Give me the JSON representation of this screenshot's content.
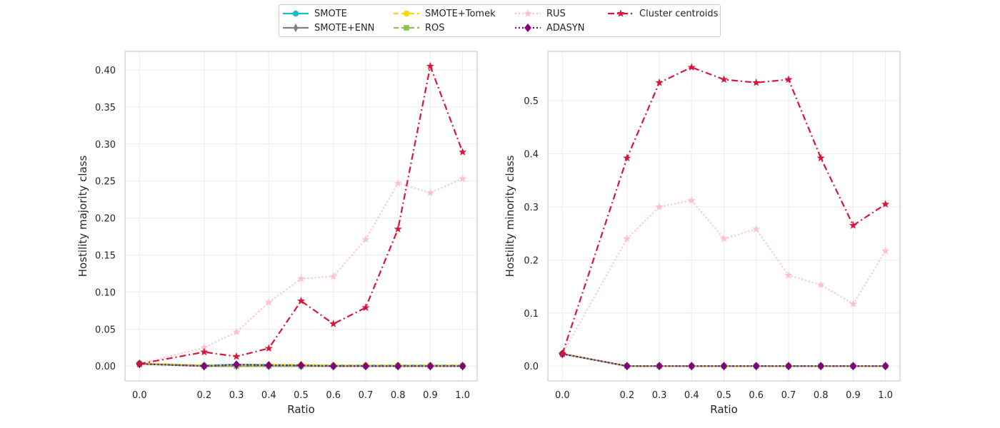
{
  "chart_data": [
    {
      "type": "line",
      "xlabel": "Ratio",
      "ylabel": "Hostility majority class",
      "x": [
        0.0,
        0.2,
        0.3,
        0.4,
        0.5,
        0.6,
        0.7,
        0.8,
        0.9,
        1.0
      ],
      "x_tick_labels": [
        "0.0",
        "0.2",
        "0.3",
        "0.4",
        "0.5",
        "0.6",
        "0.7",
        "0.8",
        "0.9",
        "1.0"
      ],
      "ylim": [
        -0.02,
        0.425
      ],
      "y_ticks": [
        0.0,
        0.05,
        0.1,
        0.15,
        0.2,
        0.25,
        0.3,
        0.35,
        0.4
      ],
      "y_tick_labels": [
        "0.00",
        "0.05",
        "0.10",
        "0.15",
        "0.20",
        "0.25",
        "0.30",
        "0.35",
        "0.40"
      ],
      "grid": true,
      "series": [
        {
          "name": "SMOTE",
          "values": [
            0.003,
            0.001,
            0.002,
            0.002,
            0.001,
            0.001,
            0.001,
            0.001,
            0.001,
            0.001
          ]
        },
        {
          "name": "SMOTE+ENN",
          "values": [
            0.003,
            0.0,
            0.0,
            0.0,
            0.0,
            0.0,
            0.0,
            0.0,
            0.0,
            0.0
          ]
        },
        {
          "name": "SMOTE+Tomek",
          "values": [
            0.004,
            0.001,
            0.001,
            0.002,
            0.002,
            0.001,
            0.001,
            0.001,
            0.001,
            0.001
          ]
        },
        {
          "name": "ROS",
          "values": [
            0.003,
            0.0,
            0.0,
            0.0,
            0.0,
            0.0,
            0.0,
            0.0,
            0.0,
            0.0
          ]
        },
        {
          "name": "RUS",
          "values": [
            0.003,
            0.025,
            0.046,
            0.086,
            0.118,
            0.121,
            0.171,
            0.247,
            0.234,
            0.253
          ]
        },
        {
          "name": "ADASYN",
          "values": [
            0.003,
            0.0,
            0.002,
            0.001,
            0.001,
            0.0,
            0.0,
            0.0,
            0.0,
            0.0
          ]
        },
        {
          "name": "Cluster centroids",
          "values": [
            0.003,
            0.019,
            0.013,
            0.024,
            0.088,
            0.057,
            0.079,
            0.185,
            0.405,
            0.289
          ]
        }
      ]
    },
    {
      "type": "line",
      "xlabel": "Ratio",
      "ylabel": "Hostility minority class",
      "x": [
        0.0,
        0.2,
        0.3,
        0.4,
        0.5,
        0.6,
        0.7,
        0.8,
        0.9,
        1.0
      ],
      "x_tick_labels": [
        "0.0",
        "0.2",
        "0.3",
        "0.4",
        "0.5",
        "0.6",
        "0.7",
        "0.8",
        "0.9",
        "1.0"
      ],
      "ylim": [
        -0.028,
        0.593
      ],
      "y_ticks": [
        0.0,
        0.1,
        0.2,
        0.3,
        0.4,
        0.5
      ],
      "y_tick_labels": [
        "0.0",
        "0.1",
        "0.2",
        "0.3",
        "0.4",
        "0.5"
      ],
      "grid": true,
      "series": [
        {
          "name": "SMOTE",
          "values": [
            0.023,
            0.0,
            0.0,
            0.0,
            0.0,
            0.0,
            0.0,
            0.0,
            0.0,
            0.0
          ]
        },
        {
          "name": "SMOTE+ENN",
          "values": [
            0.023,
            0.0,
            0.0,
            0.0,
            0.0,
            0.0,
            0.0,
            0.0,
            0.0,
            0.0
          ]
        },
        {
          "name": "SMOTE+Tomek",
          "values": [
            0.023,
            0.0,
            0.0,
            0.0,
            0.0,
            0.0,
            0.0,
            0.0,
            0.0,
            0.0
          ]
        },
        {
          "name": "ROS",
          "values": [
            0.023,
            0.0,
            0.0,
            0.0,
            0.0,
            0.0,
            0.0,
            0.0,
            0.0,
            0.0
          ]
        },
        {
          "name": "RUS",
          "values": [
            0.023,
            0.24,
            0.3,
            0.312,
            0.24,
            0.258,
            0.171,
            0.153,
            0.117,
            0.217
          ]
        },
        {
          "name": "ADASYN",
          "values": [
            0.023,
            0.0,
            0.0,
            0.0,
            0.0,
            0.0,
            0.0,
            0.0,
            0.0,
            0.0
          ]
        },
        {
          "name": "Cluster centroids",
          "values": [
            0.023,
            0.392,
            0.534,
            0.563,
            0.54,
            0.534,
            0.54,
            0.392,
            0.265,
            0.305
          ]
        }
      ]
    }
  ],
  "legend": {
    "placement": "top-center",
    "columns": 4,
    "entries": [
      {
        "label": "SMOTE",
        "color": "#17becf",
        "linestyle": "solid",
        "marker": "circle"
      },
      {
        "label": "SMOTE+ENN",
        "color": "#808080",
        "linestyle": "solid",
        "marker": "thin_diamond"
      },
      {
        "label": "SMOTE+Tomek",
        "color": "#ffd700",
        "linestyle": "dashed",
        "marker": "circle"
      },
      {
        "label": "ROS",
        "color": "#8bc34a",
        "linestyle": "dashed",
        "marker": "square"
      },
      {
        "label": "RUS",
        "color": "#ffc0cb",
        "linestyle": "dotted",
        "marker": "star"
      },
      {
        "label": "ADASYN",
        "color": "#800080",
        "linestyle": "dotted",
        "marker": "diamond"
      },
      {
        "label": "Cluster centroids",
        "color": "#dc143c",
        "linestyle": "dashdot",
        "marker": "star"
      }
    ]
  }
}
